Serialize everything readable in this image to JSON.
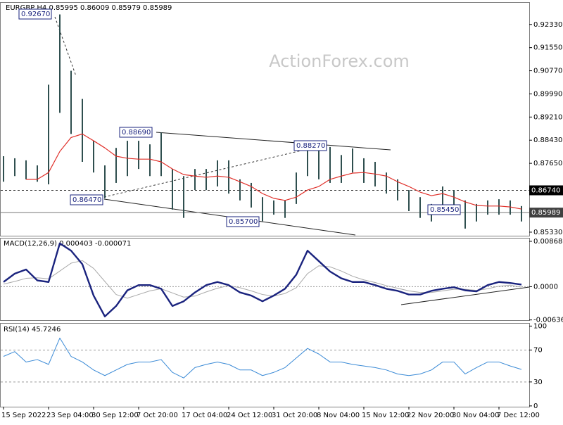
{
  "chart_data": [
    {
      "type": "ohlc",
      "title": "EURGBP,H4 0.85995 0.86009 0.85979 0.85989",
      "watermark": "ActionForex.com",
      "categories": [
        "15 Sep 2022",
        null,
        null,
        null,
        "23 Sep 04:00",
        null,
        null,
        null,
        "30 Sep 12:00",
        null,
        null,
        null,
        "7 Oct 20:00",
        null,
        null,
        null,
        "17 Oct 04:00",
        null,
        null,
        null,
        "24 Oct 12:00",
        null,
        null,
        null,
        "31 Oct 20:00",
        null,
        null,
        null,
        "8 Nov 04:00",
        null,
        null,
        null,
        "15 Nov 12:00",
        null,
        null,
        null,
        "22 Nov 20:00",
        null,
        null,
        null,
        "30 Nov 04:00",
        null,
        null,
        null,
        "7 Dec 12:00",
        null,
        null
      ],
      "high": [
        0.8789,
        0.8782,
        0.8775,
        0.8758,
        0.903,
        0.9267,
        0.9077,
        0.8982,
        0.8841,
        0.8758,
        0.8817,
        0.8841,
        0.8841,
        0.8829,
        0.8869,
        0.8746,
        0.8722,
        0.8746,
        0.8746,
        0.8775,
        0.8775,
        0.8711,
        0.8699,
        0.8651,
        0.864,
        0.864,
        0.8734,
        0.8817,
        0.8827,
        0.882,
        0.8793,
        0.8815,
        0.8782,
        0.877,
        0.8734,
        0.8711,
        0.8675,
        0.8651,
        0.8628,
        0.8687,
        0.8675,
        0.864,
        0.8628,
        0.864,
        0.8644,
        0.864,
        0.8621
      ],
      "low": [
        0.8703,
        0.8722,
        0.8711,
        0.8703,
        0.8694,
        0.8935,
        0.8864,
        0.877,
        0.8734,
        0.8647,
        0.8699,
        0.8722,
        0.8746,
        0.8722,
        0.8722,
        0.8609,
        0.8581,
        0.8675,
        0.8675,
        0.8687,
        0.8663,
        0.864,
        0.8616,
        0.857,
        0.8592,
        0.8581,
        0.8628,
        0.8722,
        0.8711,
        0.8699,
        0.8699,
        0.8734,
        0.8699,
        0.8687,
        0.8663,
        0.864,
        0.8604,
        0.8581,
        0.8569,
        0.8604,
        0.8604,
        0.8545,
        0.8569,
        0.8592,
        0.8592,
        0.8592,
        0.8569
      ],
      "color": "#2f4f4f",
      "ma": {
        "color": "#e0302a",
        "values": [
          null,
          null,
          0.8711,
          0.8711,
          0.8734,
          0.8805,
          0.8852,
          0.8864,
          0.8841,
          0.8817,
          0.8789,
          0.8782,
          0.8779,
          0.8779,
          0.877,
          0.8746,
          0.8727,
          0.8722,
          0.8718,
          0.8722,
          0.8718,
          0.8703,
          0.8687,
          0.8663,
          0.8647,
          0.864,
          0.8651,
          0.8675,
          0.8687,
          0.8711,
          0.8722,
          0.8732,
          0.8734,
          0.8729,
          0.8722,
          0.8703,
          0.8687,
          0.8668,
          0.8656,
          0.8663,
          0.8651,
          0.8635,
          0.8623,
          0.8621,
          0.8621,
          0.8618,
          0.8611
        ]
      },
      "ylim": [
        0.8521,
        0.9306
      ],
      "yticks": [
        {
          "value": 0.9233,
          "label": "0.92330"
        },
        {
          "value": 0.9155,
          "label": "0.91550"
        },
        {
          "value": 0.9077,
          "label": "0.90770"
        },
        {
          "value": 0.8999,
          "label": "0.89990"
        },
        {
          "value": 0.8921,
          "label": "0.89210"
        },
        {
          "value": 0.8843,
          "label": "0.88430"
        },
        {
          "value": 0.8765,
          "label": "0.87650"
        },
        {
          "value": 0.8533,
          "label": "0.85330"
        }
      ],
      "levels": [
        {
          "value": 0.8674,
          "label": "0.86740",
          "style": "dashed"
        },
        {
          "value": 0.85989,
          "label": "0.85989",
          "style": "solid"
        }
      ],
      "annotations": [
        "0.92670",
        "0.88690",
        "0.88270",
        "0.86470",
        "0.85700",
        "0.85450"
      ]
    },
    {
      "type": "macd",
      "title": "MACD(12,26,9) 0.000403 -0.000071",
      "series": [
        {
          "color": "#1a237e",
          "values": [
            0.0009,
            0.0025,
            0.0033,
            0.0012,
            0.0009,
            0.0083,
            0.0069,
            0.0043,
            -0.0017,
            -0.0057,
            -0.0037,
            -0.0007,
            0.0003,
            0.0003,
            -0.0004,
            -0.0037,
            -0.0028,
            -0.0011,
            0.0003,
            0.0009,
            0.0003,
            -0.0011,
            -0.0017,
            -0.0028,
            -0.0017,
            -0.0004,
            0.0023,
            0.0069,
            0.0049,
            0.0029,
            0.0016,
            0.0009,
            0.0009,
            0.0003,
            -0.0004,
            -0.0008,
            -0.0015,
            -0.0015,
            -0.0008,
            -0.0004,
            -0.0001,
            -0.0007,
            -0.0009,
            0.0003,
            0.0009,
            0.0007,
            0.0004
          ]
        },
        {
          "color": "#a9a9a9",
          "values": [
            0.0005,
            0.001,
            0.0016,
            0.0017,
            0.0015,
            0.003,
            0.0045,
            0.005,
            0.0035,
            0.001,
            -0.0015,
            -0.0022,
            -0.0015,
            -0.0008,
            -0.0004,
            -0.0012,
            -0.002,
            -0.0018,
            -0.001,
            -0.0003,
            0.0002,
            -0.0002,
            -0.0008,
            -0.0015,
            -0.0018,
            -0.0013,
            -0.0002,
            0.0025,
            0.004,
            0.0038,
            0.003,
            0.002,
            0.0013,
            0.0008,
            0.0002,
            -0.0003,
            -0.0008,
            -0.0011,
            -0.0011,
            -0.0008,
            -0.0005,
            -0.0005,
            -0.0007,
            -0.0004,
            0.0001,
            0.0003,
            -0.0001
          ]
        }
      ],
      "ylim": [
        -0.00641,
        0.00922
      ],
      "yticks": [
        0.008686,
        {
          "value": 0,
          "label": "0.0000"
        },
        -0.006366
      ]
    },
    {
      "type": "rsi",
      "title": "RSI(14) 45.7246",
      "color": "#3a8ad6",
      "values": [
        62,
        68,
        55,
        58,
        52,
        85,
        62,
        55,
        45,
        38,
        45,
        52,
        55,
        55,
        58,
        42,
        35,
        48,
        52,
        55,
        52,
        45,
        45,
        38,
        42,
        48,
        60,
        72,
        65,
        55,
        55,
        52,
        50,
        48,
        45,
        40,
        38,
        40,
        45,
        55,
        55,
        40,
        48,
        55,
        55,
        50,
        45.7
      ],
      "ylim": [
        -1,
        103
      ],
      "yticks": [
        100,
        70,
        30,
        0
      ],
      "levels": [
        70,
        30
      ]
    }
  ]
}
